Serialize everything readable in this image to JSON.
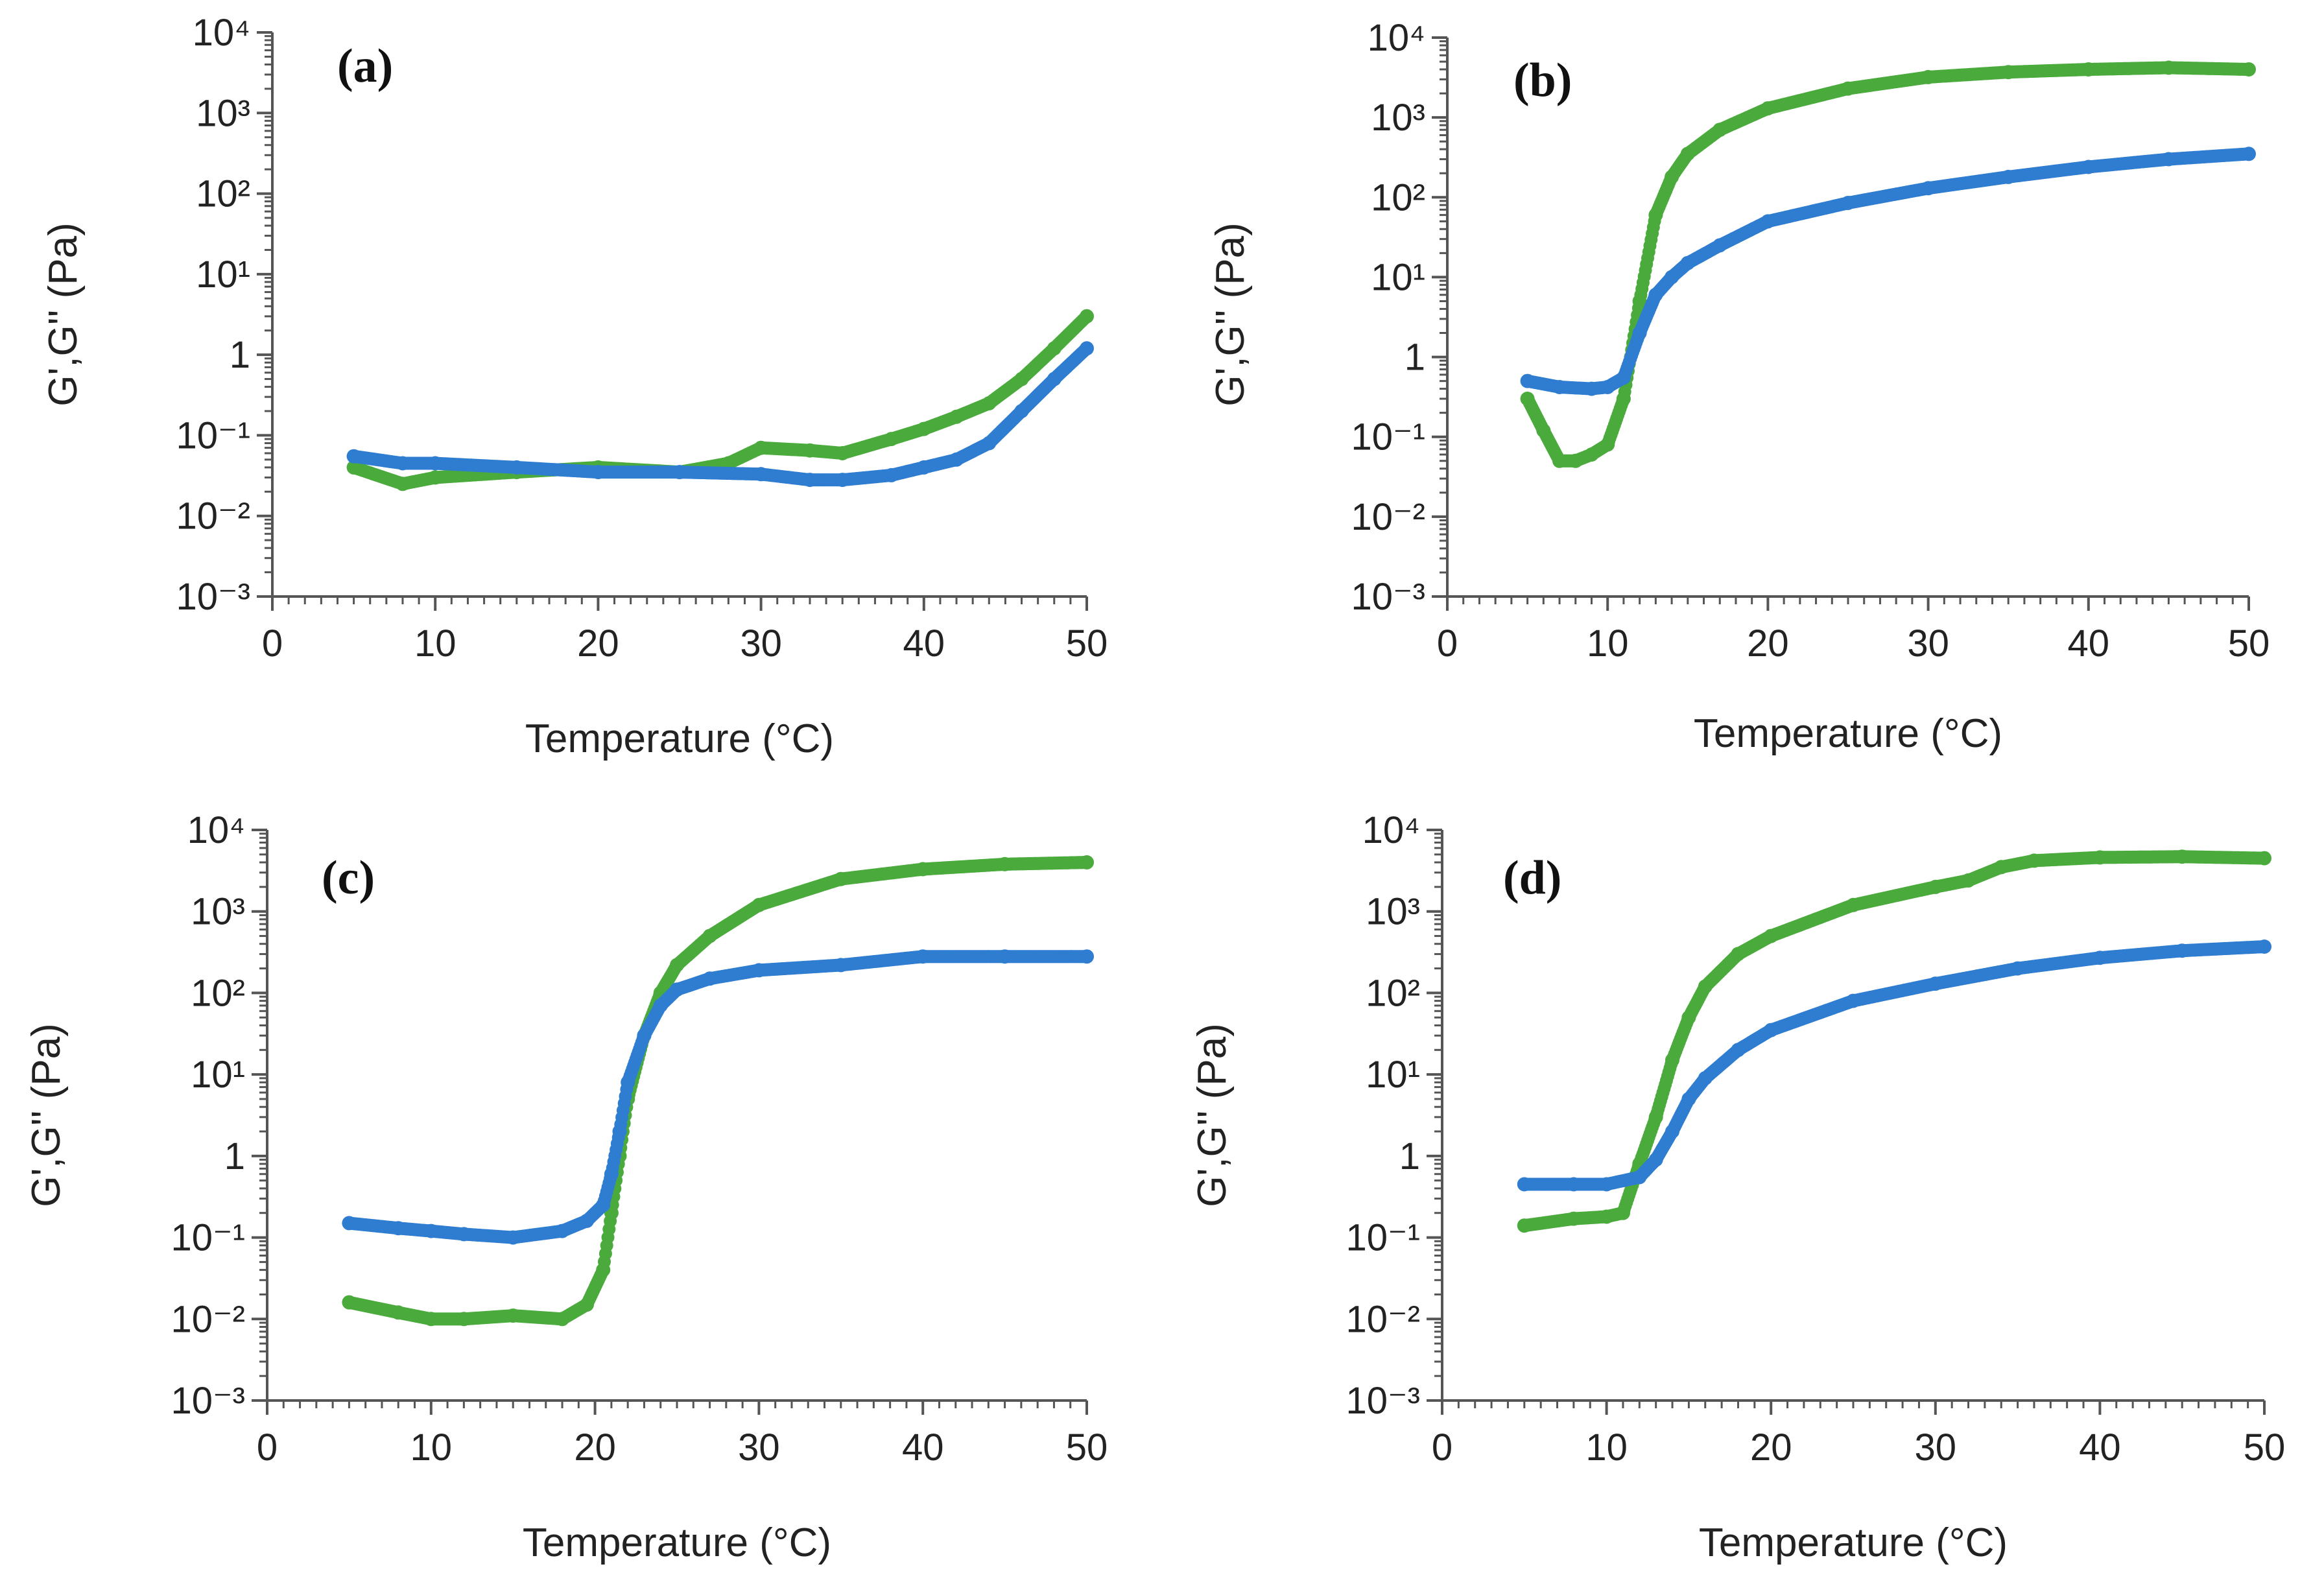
{
  "colors": {
    "storage_modulus": "#4aab3c",
    "loss_modulus": "#2f7dd1",
    "axis": "#555555"
  },
  "chart_data": [
    {
      "type": "scatter",
      "panel": "(a)",
      "xlabel": "Temperature (°C)",
      "ylabel": "G',G'' (Pa)",
      "yscale": "log",
      "xlim": [
        0,
        50
      ],
      "ylim": [
        0.001,
        10000
      ],
      "x_ticks": [
        "0",
        "10",
        "20",
        "30",
        "40",
        "50"
      ],
      "y_ticks": [
        "10⁻³",
        "10⁻²",
        "10⁻¹",
        "1",
        "10¹",
        "10²",
        "10³",
        "10⁴"
      ],
      "series": [
        {
          "name": "G' (green)",
          "color": "#4aab3c",
          "x": [
            5,
            8,
            10,
            15,
            20,
            25,
            28,
            30,
            33,
            35,
            38,
            40,
            42,
            44,
            46,
            48,
            50
          ],
          "y": [
            0.04,
            0.025,
            0.03,
            0.035,
            0.04,
            0.035,
            0.045,
            0.07,
            0.065,
            0.06,
            0.09,
            0.12,
            0.17,
            0.25,
            0.5,
            1.2,
            3.0
          ]
        },
        {
          "name": "G'' (blue)",
          "color": "#2f7dd1",
          "x": [
            5,
            8,
            10,
            15,
            20,
            25,
            30,
            33,
            35,
            38,
            40,
            42,
            44,
            46,
            48,
            50
          ],
          "y": [
            0.055,
            0.045,
            0.045,
            0.04,
            0.035,
            0.035,
            0.033,
            0.028,
            0.028,
            0.032,
            0.04,
            0.05,
            0.08,
            0.2,
            0.5,
            1.2
          ]
        }
      ]
    },
    {
      "type": "scatter",
      "panel": "(b)",
      "xlabel": "Temperature (°C)",
      "ylabel": "G',G'' (Pa)",
      "yscale": "log",
      "xlim": [
        0,
        50
      ],
      "ylim": [
        0.001,
        10000
      ],
      "x_ticks": [
        "0",
        "10",
        "20",
        "30",
        "40",
        "50"
      ],
      "y_ticks": [
        "10⁻³",
        "10⁻²",
        "10⁻¹",
        "1",
        "10¹",
        "10²",
        "10³",
        "10⁴"
      ],
      "series": [
        {
          "name": "G' (green)",
          "color": "#4aab3c",
          "x": [
            5,
            6,
            7,
            8,
            9,
            10,
            11,
            12,
            13,
            14,
            15,
            17,
            20,
            25,
            30,
            35,
            40,
            45,
            50
          ],
          "y": [
            0.3,
            0.12,
            0.05,
            0.05,
            0.06,
            0.08,
            0.3,
            5,
            60,
            180,
            350,
            700,
            1300,
            2300,
            3200,
            3700,
            4000,
            4200,
            4000
          ]
        },
        {
          "name": "G'' (blue)",
          "color": "#2f7dd1",
          "x": [
            5,
            7,
            9,
            10,
            11,
            12,
            13,
            14,
            15,
            17,
            20,
            25,
            30,
            35,
            40,
            45,
            50
          ],
          "y": [
            0.5,
            0.42,
            0.4,
            0.42,
            0.55,
            2,
            6,
            10,
            15,
            25,
            50,
            85,
            130,
            180,
            240,
            300,
            350
          ]
        }
      ]
    },
    {
      "type": "scatter",
      "panel": "(c)",
      "xlabel": "Temperature (°C)",
      "ylabel": "G',G'' (Pa)",
      "yscale": "log",
      "xlim": [
        0,
        50
      ],
      "ylim": [
        0.001,
        10000
      ],
      "x_ticks": [
        "0",
        "10",
        "20",
        "30",
        "40",
        "50"
      ],
      "y_ticks": [
        "10⁻³",
        "10⁻²",
        "10⁻¹",
        "1",
        "10¹",
        "10²",
        "10³",
        "10⁴"
      ],
      "series": [
        {
          "name": "G' (green)",
          "color": "#4aab3c",
          "x": [
            5,
            8,
            10,
            12,
            15,
            18,
            19.5,
            20.5,
            21,
            21.5,
            22,
            23,
            24,
            25,
            27,
            30,
            35,
            40,
            45,
            50
          ],
          "y": [
            0.016,
            0.012,
            0.01,
            0.01,
            0.011,
            0.01,
            0.015,
            0.04,
            0.2,
            1,
            5,
            30,
            100,
            220,
            500,
            1200,
            2500,
            3300,
            3800,
            4000
          ]
        },
        {
          "name": "G'' (blue)",
          "color": "#2f7dd1",
          "x": [
            5,
            8,
            10,
            12,
            15,
            18,
            19.5,
            20.5,
            21,
            21.5,
            22,
            23,
            24,
            25,
            27,
            30,
            35,
            40,
            45,
            50
          ],
          "y": [
            0.15,
            0.13,
            0.12,
            0.11,
            0.1,
            0.12,
            0.16,
            0.25,
            0.6,
            2,
            8,
            30,
            70,
            110,
            150,
            190,
            220,
            280,
            280,
            280
          ]
        }
      ]
    },
    {
      "type": "scatter",
      "panel": "(d)",
      "xlabel": "Temperature (°C)",
      "ylabel": "G',G'' (Pa)",
      "yscale": "log",
      "xlim": [
        0,
        50
      ],
      "ylim": [
        0.001,
        10000
      ],
      "x_ticks": [
        "0",
        "10",
        "20",
        "30",
        "40",
        "50"
      ],
      "y_ticks": [
        "10⁻³",
        "10⁻²",
        "10⁻¹",
        "1",
        "10¹",
        "10²",
        "10³",
        "10⁴"
      ],
      "series": [
        {
          "name": "G' (green)",
          "color": "#4aab3c",
          "x": [
            5,
            8,
            10,
            11,
            12,
            13,
            14,
            15,
            16,
            18,
            20,
            25,
            30,
            32,
            34,
            36,
            40,
            45,
            50
          ],
          "y": [
            0.14,
            0.17,
            0.18,
            0.2,
            0.8,
            3,
            15,
            50,
            120,
            300,
            500,
            1200,
            2000,
            2400,
            3500,
            4200,
            4600,
            4700,
            4500
          ]
        },
        {
          "name": "G'' (blue)",
          "color": "#2f7dd1",
          "x": [
            5,
            8,
            10,
            12,
            13,
            14,
            15,
            16,
            18,
            20,
            25,
            30,
            35,
            40,
            45,
            50
          ],
          "y": [
            0.45,
            0.45,
            0.45,
            0.55,
            0.9,
            2,
            5,
            9,
            20,
            35,
            80,
            130,
            200,
            270,
            330,
            370
          ]
        }
      ]
    }
  ]
}
